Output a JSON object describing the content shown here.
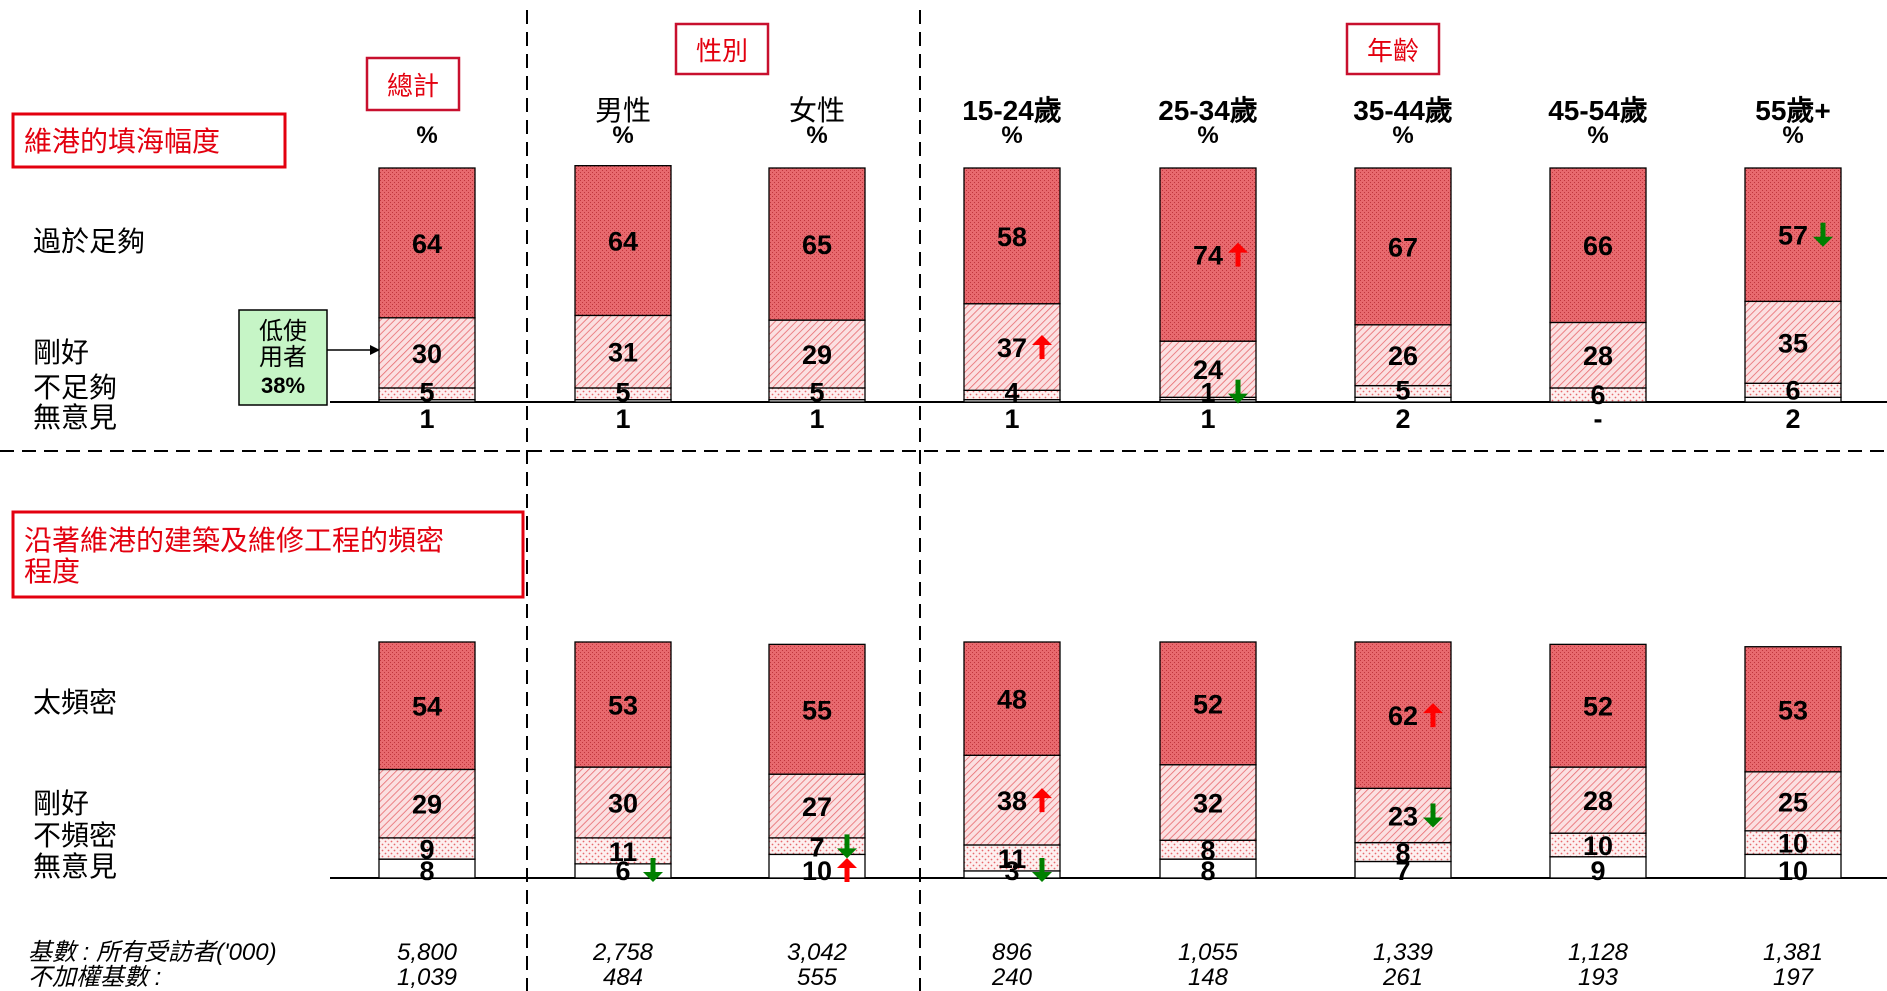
{
  "header": {
    "total_box": "總計",
    "gender_box": "性別",
    "age_box": "年齡"
  },
  "columns": [
    {
      "label": "",
      "unit": "%"
    },
    {
      "label": "男性",
      "unit": "%"
    },
    {
      "label": "女性",
      "unit": "%"
    },
    {
      "label": "15-24歲",
      "unit": "%"
    },
    {
      "label": "25-34歲",
      "unit": "%"
    },
    {
      "label": "35-44歲",
      "unit": "%"
    },
    {
      "label": "45-54歲",
      "unit": "%"
    },
    {
      "label": "55歲+",
      "unit": "%"
    }
  ],
  "callout": {
    "line1": "低使",
    "line2": "用者",
    "line3": "38%"
  },
  "base": {
    "label1": "基數 : 所有受訪者('000)",
    "label2": "不加權基數 :",
    "weighted": [
      "5,800",
      "2,758",
      "3,042",
      "896",
      "1,055",
      "1,339",
      "1,128",
      "1,381"
    ],
    "unweighted": [
      "1,039",
      "484",
      "555",
      "240",
      "148",
      "261",
      "193",
      "197"
    ]
  },
  "colors": {
    "red": "#e8696e",
    "light": "#f6c5c7",
    "dots": "#fbe4e5",
    "accent_red": "#e3000f",
    "up": "#ff0000",
    "down": "#008000",
    "callout_bg": "#c6f5c6"
  },
  "chart_data": [
    {
      "type": "bar",
      "title": "維港的填海幅度",
      "stacked": true,
      "categories": [
        "總計",
        "男性",
        "女性",
        "15-24歲",
        "25-34歲",
        "35-44歲",
        "45-54歲",
        "55歲+"
      ],
      "series": [
        {
          "name": "過於足夠",
          "values": [
            64,
            64,
            65,
            58,
            74,
            67,
            66,
            57
          ],
          "labels": [
            "64",
            "64",
            "65",
            "58",
            "74",
            "67",
            "66",
            "57"
          ],
          "arrows": [
            "",
            "",
            "",
            "",
            "up",
            "",
            "",
            "down"
          ]
        },
        {
          "name": "剛好",
          "values": [
            30,
            31,
            29,
            37,
            24,
            26,
            28,
            35
          ],
          "labels": [
            "30",
            "31",
            "29",
            "37",
            "24",
            "26",
            "28",
            "35"
          ],
          "arrows": [
            "",
            "",
            "",
            "up",
            "",
            "",
            "",
            ""
          ]
        },
        {
          "name": "不足夠",
          "values": [
            5,
            5,
            5,
            4,
            1,
            5,
            6,
            6
          ],
          "labels": [
            "5",
            "5",
            "5",
            "4",
            "1",
            "5",
            "6",
            "6"
          ],
          "arrows": [
            "",
            "",
            "",
            "",
            "down",
            "",
            "",
            ""
          ]
        },
        {
          "name": "無意見",
          "values": [
            1,
            1,
            1,
            1,
            1,
            2,
            0,
            2
          ],
          "labels": [
            "1",
            "1",
            "1",
            "1",
            "1",
            "2",
            "-",
            "2"
          ],
          "arrows": [
            "",
            "",
            "",
            "",
            "",
            "",
            "",
            ""
          ]
        }
      ]
    },
    {
      "type": "bar",
      "title": "沿著維港的建築及維修工程的頻密程度",
      "stacked": true,
      "categories": [
        "總計",
        "男性",
        "女性",
        "15-24歲",
        "25-34歲",
        "35-44歲",
        "45-54歲",
        "55歲+"
      ],
      "series": [
        {
          "name": "太頻密",
          "values": [
            54,
            53,
            55,
            48,
            52,
            62,
            52,
            53
          ],
          "labels": [
            "54",
            "53",
            "55",
            "48",
            "52",
            "62",
            "52",
            "53"
          ],
          "arrows": [
            "",
            "",
            "",
            "",
            "",
            "up",
            "",
            ""
          ]
        },
        {
          "name": "剛好",
          "values": [
            29,
            30,
            27,
            38,
            32,
            23,
            28,
            25
          ],
          "labels": [
            "29",
            "30",
            "27",
            "38",
            "32",
            "23",
            "28",
            "25"
          ],
          "arrows": [
            "",
            "",
            "",
            "up",
            "",
            "down",
            "",
            ""
          ]
        },
        {
          "name": "不頻密",
          "values": [
            9,
            11,
            7,
            11,
            8,
            8,
            10,
            10
          ],
          "labels": [
            "9",
            "11",
            "7",
            "11",
            "8",
            "8",
            "10",
            "10"
          ],
          "arrows": [
            "",
            "",
            "down",
            "",
            "",
            "",
            "",
            ""
          ]
        },
        {
          "name": "無意見",
          "values": [
            8,
            6,
            10,
            3,
            8,
            7,
            9,
            10
          ],
          "labels": [
            "8",
            "6",
            "10",
            "3",
            "8",
            "7",
            "9",
            "10"
          ],
          "arrows": [
            "",
            "down",
            "up",
            "down",
            "",
            "",
            "",
            ""
          ]
        }
      ]
    }
  ]
}
